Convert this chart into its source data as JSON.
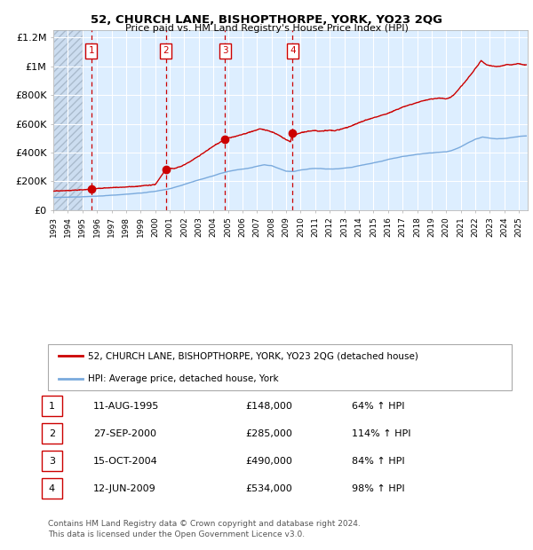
{
  "title1": "52, CHURCH LANE, BISHOPTHORPE, YORK, YO23 2QG",
  "title2": "Price paid vs. HM Land Registry's House Price Index (HPI)",
  "sale_dates_num": [
    1995.61,
    2000.74,
    2004.79,
    2009.45
  ],
  "sale_prices": [
    148000,
    285000,
    490000,
    534000
  ],
  "sale_labels": [
    "1",
    "2",
    "3",
    "4"
  ],
  "sale_info": [
    {
      "num": "1",
      "date": "11-AUG-1995",
      "price": "£148,000",
      "pct": "64% ↑ HPI"
    },
    {
      "num": "2",
      "date": "27-SEP-2000",
      "price": "£285,000",
      "pct": "114% ↑ HPI"
    },
    {
      "num": "3",
      "date": "15-OCT-2004",
      "price": "£490,000",
      "pct": "84% ↑ HPI"
    },
    {
      "num": "4",
      "date": "12-JUN-2009",
      "price": "£534,000",
      "pct": "98% ↑ HPI"
    }
  ],
  "hpi_line_color": "#7aaadd",
  "price_line_color": "#cc0000",
  "dot_color": "#cc0000",
  "dashed_line_color": "#cc0000",
  "chart_bg_color": "#ddeeff",
  "hatch_region_end": 1995.0,
  "grid_color": "#ffffff",
  "legend_label1": "52, CHURCH LANE, BISHOPTHORPE, YORK, YO23 2QG (detached house)",
  "legend_label2": "HPI: Average price, detached house, York",
  "footer1": "Contains HM Land Registry data © Crown copyright and database right 2024.",
  "footer2": "This data is licensed under the Open Government Licence v3.0.",
  "ylim": [
    0,
    1250000
  ],
  "xlim_start": 1993.0,
  "xlim_end": 2025.6,
  "yticks": [
    0,
    200000,
    400000,
    600000,
    800000,
    1000000,
    1200000
  ],
  "ytick_labels": [
    "£0",
    "£200K",
    "£400K",
    "£600K",
    "£800K",
    "£1M",
    "£1.2M"
  ],
  "xticks": [
    1993,
    1994,
    1995,
    1996,
    1997,
    1998,
    1999,
    2000,
    2001,
    2002,
    2003,
    2004,
    2005,
    2006,
    2007,
    2008,
    2009,
    2010,
    2011,
    2012,
    2013,
    2014,
    2015,
    2016,
    2017,
    2018,
    2019,
    2020,
    2021,
    2022,
    2023,
    2024,
    2025
  ]
}
